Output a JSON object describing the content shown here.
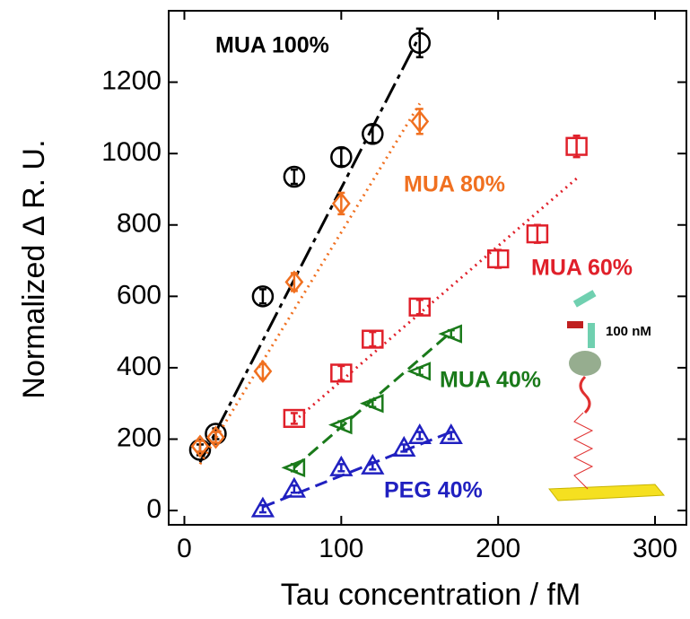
{
  "chart_data": {
    "type": "scatter",
    "xlabel": "Tau concentration / fM",
    "ylabel": "Normalized  Δ R. U.",
    "xlim": [
      -10,
      320
    ],
    "xticks": [
      0,
      100,
      200,
      300
    ],
    "ylim": [
      -40,
      1400
    ],
    "yticks": [
      0,
      200,
      400,
      600,
      800,
      1000,
      1200
    ],
    "series": [
      {
        "name": "MUA 100%",
        "color": "#000000",
        "marker": "circle",
        "dash": "dash-dot",
        "x": [
          10,
          20,
          50,
          70,
          100,
          120,
          150
        ],
        "values": [
          170,
          215,
          600,
          935,
          990,
          1055,
          1310
        ],
        "errors": [
          15,
          15,
          20,
          20,
          25,
          25,
          40
        ],
        "fit": {
          "x": [
            10,
            150
          ],
          "y": [
            135,
            1330
          ]
        }
      },
      {
        "name": "MUA 80%",
        "color": "#f07020",
        "marker": "diamond",
        "dash": "dotted",
        "x": [
          10,
          20,
          50,
          70,
          100,
          150
        ],
        "values": [
          180,
          205,
          390,
          640,
          860,
          1090
        ],
        "errors": [
          15,
          15,
          20,
          25,
          30,
          35
        ],
        "fit": {
          "x": [
            10,
            150
          ],
          "y": [
            130,
            1140
          ]
        }
      },
      {
        "name": "MUA 60%",
        "color": "#e0202a",
        "marker": "square",
        "dash": "dotted",
        "x": [
          70,
          100,
          120,
          150,
          200,
          225,
          250
        ],
        "values": [
          258,
          385,
          480,
          570,
          705,
          775,
          1020
        ],
        "errors": [
          15,
          20,
          20,
          20,
          25,
          25,
          30
        ],
        "fit": {
          "x": [
            70,
            250
          ],
          "y": [
            250,
            930
          ]
        }
      },
      {
        "name": "MUA 40%",
        "color": "#1a7a1a",
        "marker": "triangle-left",
        "dash": "dashed",
        "x": [
          70,
          100,
          120,
          150,
          170
        ],
        "values": [
          120,
          240,
          300,
          390,
          495
        ],
        "errors": [
          10,
          10,
          10,
          10,
          10
        ],
        "fit": {
          "x": [
            70,
            170
          ],
          "y": [
            120,
            500
          ]
        }
      },
      {
        "name": "PEG 40%",
        "color": "#2020c0",
        "marker": "triangle-up",
        "dash": "dashed",
        "x": [
          50,
          70,
          100,
          120,
          140,
          150,
          170
        ],
        "values": [
          5,
          60,
          120,
          125,
          175,
          210,
          210
        ],
        "errors": [
          10,
          10,
          10,
          10,
          10,
          10,
          10
        ],
        "fit": {
          "x": [
            50,
            170
          ],
          "y": [
            10,
            220
          ]
        }
      }
    ],
    "inset_label": "100 nM"
  }
}
